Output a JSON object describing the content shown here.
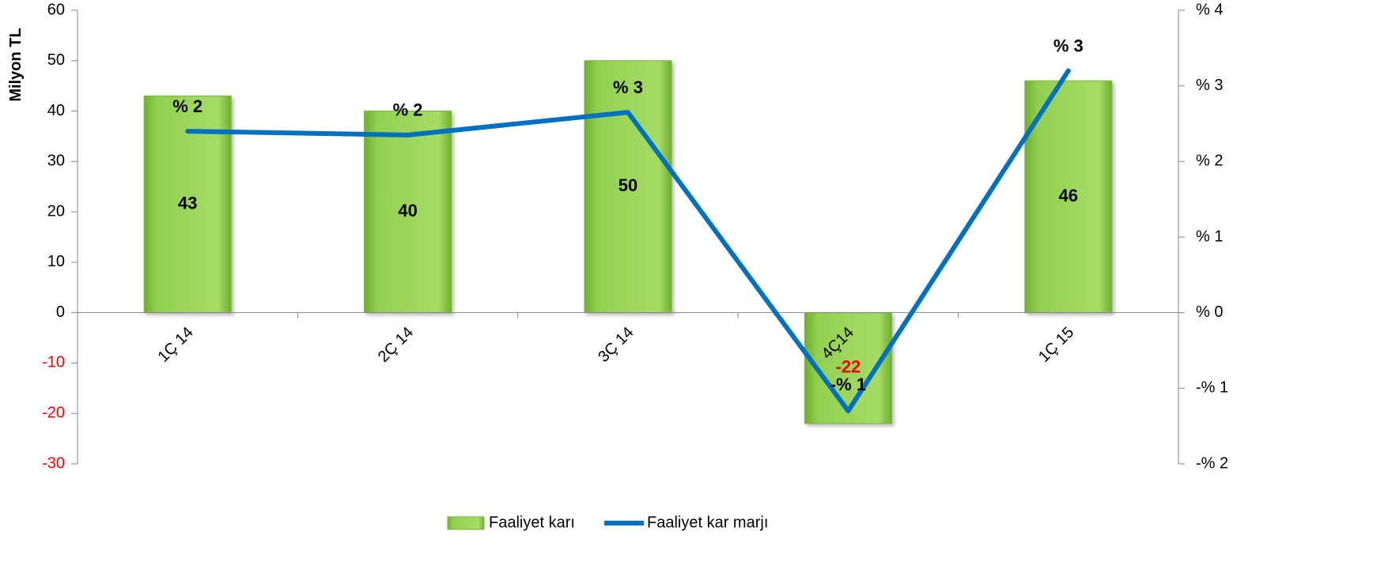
{
  "chart_data": {
    "type": "bar",
    "categories": [
      "1Ç 14",
      "2Ç 14",
      "3Ç 14",
      "4Ç14",
      "1Ç 15"
    ],
    "series": [
      {
        "name": "Faaliyet karı",
        "type": "bar",
        "axis": "left",
        "values": [
          43,
          40,
          50,
          -22,
          46
        ],
        "labels": [
          "43",
          "40",
          "50",
          "-22",
          "46"
        ],
        "color": "#92D050"
      },
      {
        "name": "Faaliyet kar marjı",
        "type": "line",
        "axis": "right",
        "values": [
          2.4,
          2.35,
          2.65,
          -1.3,
          3.2
        ],
        "labels": [
          "% 2",
          "% 2",
          "% 3",
          "-% 1",
          "% 3"
        ],
        "color": "#0070C0"
      }
    ],
    "ylabel": "Milyon TL",
    "ylim": [
      -30,
      60
    ],
    "yticks": [
      60,
      50,
      40,
      30,
      20,
      10,
      0,
      -10,
      -20,
      -30
    ],
    "ytick_labels": [
      "60",
      "50",
      "40",
      "30",
      "20",
      "10",
      "0",
      "-10",
      "-20",
      "-30"
    ],
    "y2lim": [
      -2,
      4
    ],
    "y2ticks": [
      4,
      3,
      2,
      1,
      0,
      -1,
      -2
    ],
    "y2tick_labels": [
      "% 4",
      "% 3",
      "% 2",
      "% 1",
      "% 0",
      "-% 1",
      "-% 2"
    ],
    "negative_label_color": "#FF0000",
    "grid": false,
    "legend": "bottom-center"
  }
}
